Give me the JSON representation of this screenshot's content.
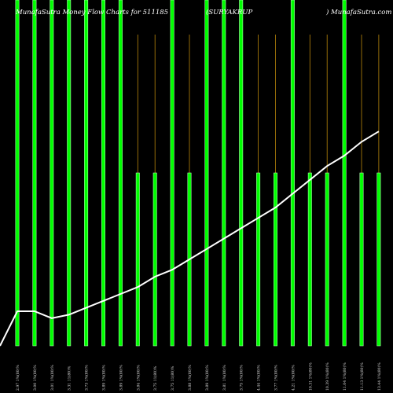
{
  "header": {
    "left": "MunafaSutra Money Flow Charts for 511185",
    "center": "(SURYAKRUP",
    "right": ") MunafaSutra.com"
  },
  "colors": {
    "background": "#000000",
    "bar_fill": "#00ff00",
    "bar_stroke": "#aaffaa",
    "wick": "#b8860b",
    "line": "#ffffff"
  },
  "chart_data": {
    "type": "bar",
    "title": "MunafaSutra Money Flow Charts for 511185 (SURYAKRUP) MunafaSutra.com",
    "categories": [
      "2.97 1%(80)%",
      "3.00 1%(80)%",
      "3.01 1%(80)%",
      "3.31 11(80)%",
      "3.73 1%(80)%",
      "3.89 1%(80)%",
      "3.89 1%(80)%",
      "3.84 1%(80)%",
      "3.75 11(80)%",
      "3.75 11(80)%",
      "3.88 1%(80)%",
      "3.89 1%(80)%",
      "3.81 1%(80)%",
      "3.75 1%(80)%",
      "4.44 1%(80)%",
      "3.77 1%(80)%",
      "4.21 1%(80)%",
      "10.31 1%(80)%",
      "10.39 1%(80)%",
      "11.04 1%(80)%",
      "11.13 1%(80)%",
      "13.44 1%(80)%"
    ],
    "series": [
      {
        "values": [
          100,
          100,
          100,
          100,
          100,
          100,
          100,
          50,
          50,
          100,
          50,
          100,
          100,
          100,
          50,
          50,
          100,
          50,
          50,
          100,
          50,
          50
        ]
      }
    ],
    "wicks": [
      0,
      0,
      0,
      0,
      0,
      0,
      0,
      90,
      90,
      0,
      90,
      0,
      0,
      0,
      90,
      90,
      0,
      90,
      90,
      0,
      90,
      90
    ],
    "line": [
      10,
      10,
      8,
      9,
      11,
      13,
      15,
      17,
      20,
      22,
      25,
      28,
      31,
      34,
      37,
      40,
      44,
      48,
      52,
      55,
      59,
      62
    ],
    "ylim": [
      0,
      100
    ]
  }
}
